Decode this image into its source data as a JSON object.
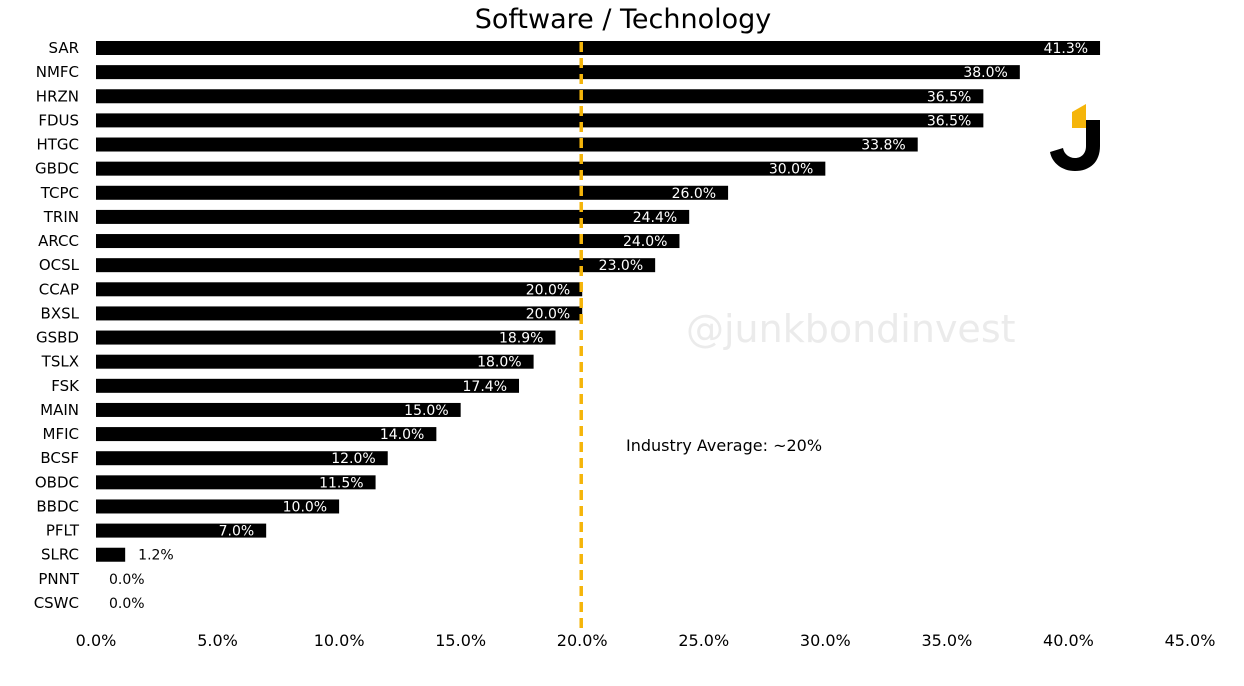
{
  "colors": {
    "bar": "#000000",
    "reference_line": "#F5B50A",
    "logo_accent": "#F5B50A",
    "background": "#FFFFFF"
  },
  "watermark": "@junkbondinvest",
  "logo": {
    "icon": "j-brand-icon"
  },
  "chart_data": {
    "type": "bar",
    "orientation": "horizontal",
    "title": "Software / Technology",
    "xlabel": "",
    "ylabel": "",
    "xlim": [
      0,
      45
    ],
    "x_ticks": [
      0,
      5,
      10,
      15,
      20,
      25,
      30,
      35,
      40,
      45
    ],
    "x_tick_labels": [
      "0.0%",
      "5.0%",
      "10.0%",
      "15.0%",
      "20.0%",
      "25.0%",
      "30.0%",
      "35.0%",
      "40.0%",
      "45.0%"
    ],
    "grid": false,
    "categories": [
      "SAR",
      "NMFC",
      "HRZN",
      "FDUS",
      "HTGC",
      "GBDC",
      "TCPC",
      "TRIN",
      "ARCC",
      "OCSL",
      "CCAP",
      "BXSL",
      "GSBD",
      "TSLX",
      "FSK",
      "MAIN",
      "MFIC",
      "BCSF",
      "OBDC",
      "BBDC",
      "PFLT",
      "SLRC",
      "PNNT",
      "CSWC"
    ],
    "values": [
      41.3,
      38.0,
      36.5,
      36.5,
      33.8,
      30.0,
      26.0,
      24.4,
      24.0,
      23.0,
      20.0,
      20.0,
      18.9,
      18.0,
      17.4,
      15.0,
      14.0,
      12.0,
      11.5,
      10.0,
      7.0,
      1.2,
      0.0,
      0.0
    ],
    "value_labels": [
      "41.3%",
      "38.0%",
      "36.5%",
      "36.5%",
      "33.8%",
      "30.0%",
      "26.0%",
      "24.4%",
      "24.0%",
      "23.0%",
      "20.0%",
      "20.0%",
      "18.9%",
      "18.0%",
      "17.4%",
      "15.0%",
      "14.0%",
      "12.0%",
      "11.5%",
      "10.0%",
      "7.0%",
      "1.2%",
      "0.0%",
      "0.0%"
    ],
    "reference_line": {
      "value": 20,
      "style": "dashed",
      "label": "Industry Average: ~20%"
    }
  }
}
